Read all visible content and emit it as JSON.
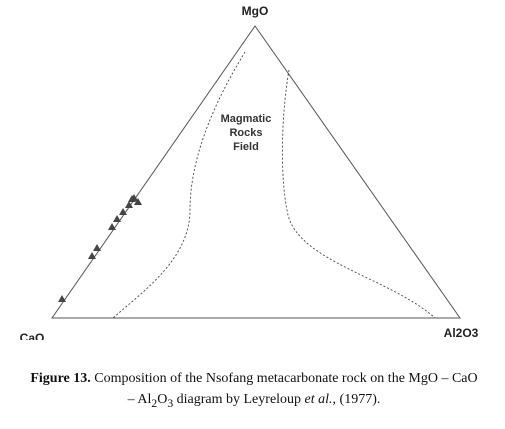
{
  "diagram": {
    "type": "ternary",
    "vertices": {
      "top": "MgO",
      "left": "CaO",
      "right": "Al2O3"
    },
    "vertex_labels": {
      "top": "MgO",
      "left": "CaO",
      "right": "Al2O3"
    },
    "field_label": [
      "Magmatic",
      "Rocks",
      "Field"
    ],
    "marker": "filled-triangle",
    "sample_count": 10
  },
  "caption": {
    "label": "Figure 13.",
    "part1": " Composition of the Nsofang metacarbonate rock on the MgO – CaO",
    "part2": "– Al",
    "sub1": "2",
    "part3": "O",
    "sub2": "3",
    "part4": " diagram by Leyreloup ",
    "italic": "et al.",
    "part5": ", (1977)."
  }
}
